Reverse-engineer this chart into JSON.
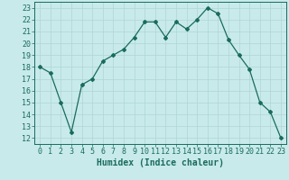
{
  "x": [
    0,
    1,
    2,
    3,
    4,
    5,
    6,
    7,
    8,
    9,
    10,
    11,
    12,
    13,
    14,
    15,
    16,
    17,
    18,
    19,
    20,
    21,
    22,
    23
  ],
  "y": [
    18,
    17.5,
    15,
    12.5,
    16.5,
    17,
    18.5,
    19,
    19.5,
    20.5,
    21.8,
    21.8,
    20.5,
    21.8,
    21.2,
    22,
    23,
    22.5,
    20.3,
    19,
    17.8,
    15,
    14.2,
    12
  ],
  "line_color": "#1a6b5e",
  "marker": "D",
  "marker_size": 2,
  "bg_color": "#c8eaea",
  "grid_color": "#b0d4d4",
  "xlabel": "Humidex (Indice chaleur)",
  "ylabel_ticks": [
    12,
    13,
    14,
    15,
    16,
    17,
    18,
    19,
    20,
    21,
    22,
    23
  ],
  "ylim": [
    11.5,
    23.5
  ],
  "xlim": [
    -0.5,
    23.5
  ],
  "xticks": [
    0,
    1,
    2,
    3,
    4,
    5,
    6,
    7,
    8,
    9,
    10,
    11,
    12,
    13,
    14,
    15,
    16,
    17,
    18,
    19,
    20,
    21,
    22,
    23
  ],
  "tick_color": "#1a6b5e",
  "label_fontsize": 7,
  "tick_fontsize": 6
}
